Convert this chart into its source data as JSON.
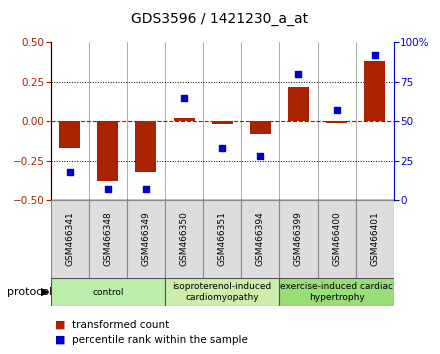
{
  "title": "GDS3596 / 1421230_a_at",
  "samples": [
    "GSM466341",
    "GSM466348",
    "GSM466349",
    "GSM466350",
    "GSM466351",
    "GSM466394",
    "GSM466399",
    "GSM466400",
    "GSM466401"
  ],
  "transformed_count": [
    -0.17,
    -0.38,
    -0.32,
    0.02,
    -0.02,
    -0.08,
    0.22,
    -0.01,
    0.38
  ],
  "percentile_rank": [
    18,
    7,
    7,
    65,
    33,
    28,
    80,
    57,
    92
  ],
  "ylim_left": [
    -0.5,
    0.5
  ],
  "ylim_right": [
    0,
    100
  ],
  "yticks_left": [
    -0.5,
    -0.25,
    0,
    0.25,
    0.5
  ],
  "yticks_right": [
    0,
    25,
    50,
    75,
    100
  ],
  "bar_color": "#AA2200",
  "dot_color": "#0000CC",
  "zero_line_color": "#CC0000",
  "groups": [
    {
      "label": "control",
      "start": 0,
      "end": 3,
      "color": "#BBEEAA"
    },
    {
      "label": "isoproterenol-induced\ncardiomyopathy",
      "start": 3,
      "end": 6,
      "color": "#CCEEAA"
    },
    {
      "label": "exercise-induced cardiac\nhypertrophy",
      "start": 6,
      "end": 9,
      "color": "#99DD77"
    }
  ],
  "legend_items": [
    {
      "label": "transformed count",
      "color": "#AA2200"
    },
    {
      "label": "percentile rank within the sample",
      "color": "#0000CC"
    }
  ],
  "protocol_label": "protocol",
  "title_fontsize": 10,
  "tick_fontsize": 7.5,
  "sample_fontsize": 6.5,
  "group_fontsize": 6.5,
  "legend_fontsize": 7.5,
  "bg_color": "#EEEEEE"
}
